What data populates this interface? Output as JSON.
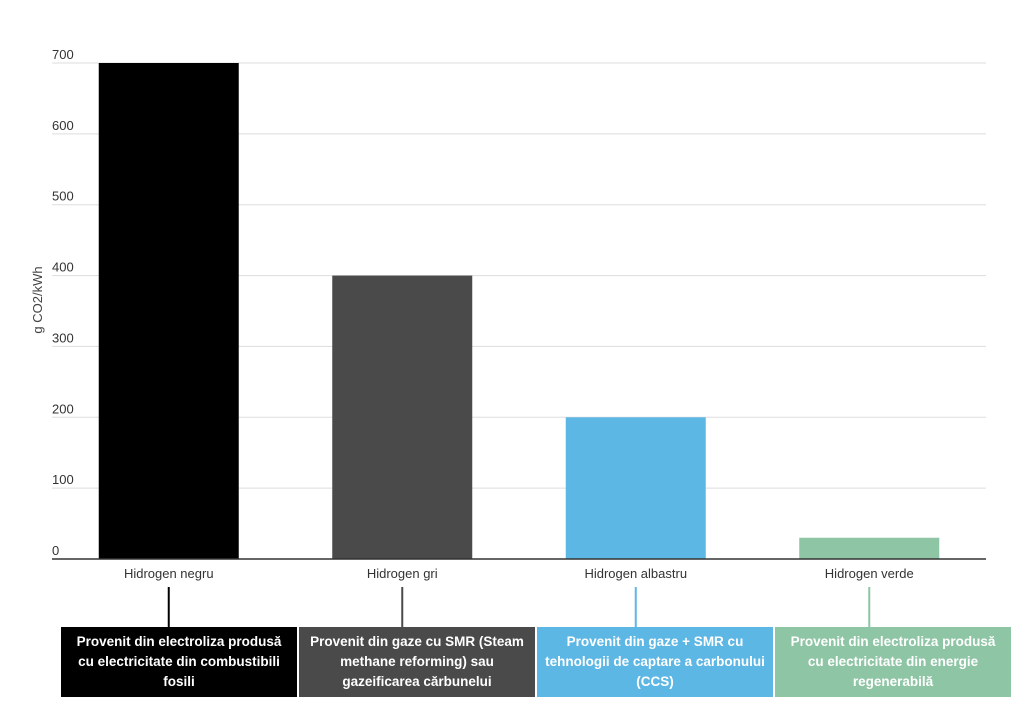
{
  "chart_data": {
    "type": "bar",
    "title": "",
    "xlabel": "",
    "ylabel": "g CO2/kWh",
    "ylim": [
      0,
      700
    ],
    "yticks": [
      0,
      100,
      200,
      300,
      400,
      500,
      600,
      700
    ],
    "grid": true,
    "categories": [
      "Hidrogen negru",
      "Hidrogen gri",
      "Hidrogen albastru",
      "Hidrogen verde"
    ],
    "values": [
      700,
      400,
      200,
      30
    ],
    "colors": [
      "#000000",
      "#4a4a4a",
      "#5db7e4",
      "#8ec5a4"
    ],
    "descriptions": [
      "Provenit din electroliza produsă cu electricitate din combustibili fosili",
      "Provenit din gaze cu SMR (Steam methane reforming) sau gazeificarea cărbunelui",
      "Provenit din gaze + SMR cu tehnologii de captare a carbonului (CCS)",
      "Provenit din electroliza produsă cu electricitate din energie regenerabilă"
    ]
  }
}
